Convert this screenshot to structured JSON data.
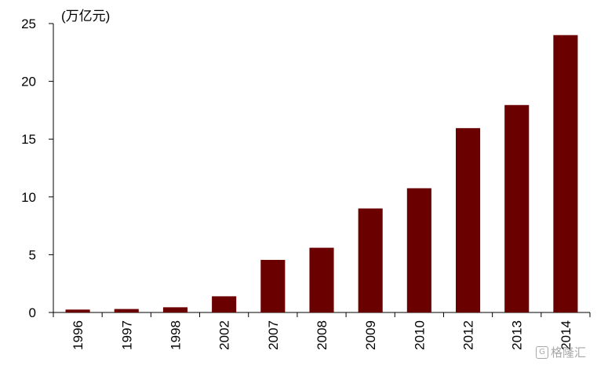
{
  "chart_data": {
    "type": "bar",
    "unit_label": "(万亿元)",
    "categories": [
      "1996",
      "1997",
      "1998",
      "2002",
      "2007",
      "2008",
      "2009",
      "2010",
      "2012",
      "2013",
      "2014"
    ],
    "values": [
      0.25,
      0.3,
      0.45,
      1.4,
      4.55,
      5.6,
      9.0,
      10.75,
      15.95,
      17.95,
      24.0
    ],
    "ylim": [
      0,
      25
    ],
    "yticks": [
      "0",
      "5",
      "10",
      "15",
      "20",
      "25"
    ],
    "xlabel": "",
    "ylabel": "",
    "bar_color": "#6b0000",
    "grid": false,
    "legend": "none"
  },
  "watermark": {
    "text": "格隆汇",
    "icon": "G"
  }
}
